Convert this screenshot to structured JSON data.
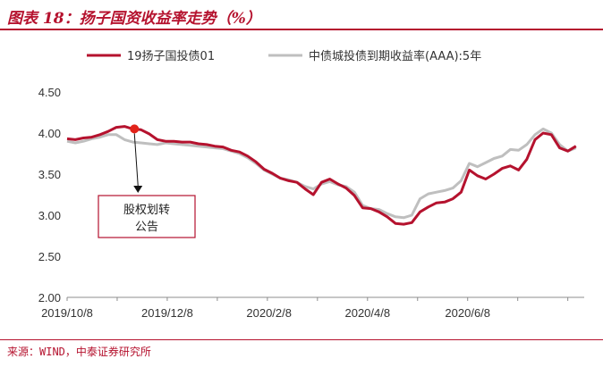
{
  "header": {
    "title": "图表 18：扬子国资收益率走势（%）"
  },
  "footer": {
    "source": "来源：WIND，中泰证券研究所"
  },
  "chart_data": {
    "type": "line",
    "title": "图表 18：扬子国资收益率走势（%）",
    "xlabel": "",
    "ylabel": "",
    "ylim": [
      2.0,
      4.5
    ],
    "yticks": [
      "2.00",
      "2.50",
      "3.00",
      "3.50",
      "4.00",
      "4.50"
    ],
    "xtick_labels": [
      "2019/10/8",
      "2019/12/8",
      "2020/2/8",
      "2020/4/8",
      "2020/6/8"
    ],
    "xtick_positions": [
      0,
      61,
      123,
      183,
      244
    ],
    "x_range": [
      0,
      315
    ],
    "legend": {
      "position": "top"
    },
    "series": [
      {
        "name": "19扬子国投债01",
        "color": "#B5122E",
        "x": [
          0,
          5,
          10,
          15,
          20,
          25,
          30,
          35,
          40,
          45,
          50,
          55,
          60,
          65,
          70,
          75,
          80,
          85,
          90,
          95,
          100,
          105,
          110,
          115,
          120,
          125,
          130,
          135,
          140,
          145,
          150,
          155,
          160,
          165,
          170,
          175,
          180,
          185,
          190,
          195,
          200,
          205,
          210,
          215,
          220,
          225,
          230,
          235,
          240,
          245,
          250,
          255,
          260,
          265,
          270,
          275,
          280,
          285,
          290,
          295,
          300,
          305,
          310
        ],
        "values": [
          3.93,
          3.92,
          3.94,
          3.95,
          3.98,
          4.02,
          4.07,
          4.08,
          4.05,
          4.04,
          3.99,
          3.92,
          3.9,
          3.9,
          3.89,
          3.89,
          3.87,
          3.86,
          3.84,
          3.83,
          3.79,
          3.77,
          3.72,
          3.65,
          3.56,
          3.51,
          3.45,
          3.42,
          3.4,
          3.32,
          3.25,
          3.4,
          3.44,
          3.38,
          3.33,
          3.24,
          3.09,
          3.08,
          3.04,
          2.98,
          2.9,
          2.89,
          2.91,
          3.04,
          3.1,
          3.15,
          3.16,
          3.2,
          3.28,
          3.55,
          3.48,
          3.44,
          3.5,
          3.57,
          3.6,
          3.55,
          3.68,
          3.92,
          4.0,
          3.98,
          3.82,
          3.78,
          3.84
        ]
      },
      {
        "name": "中债城投债到期收益率(AAA):5年",
        "color": "#BFBFBF",
        "x": [
          0,
          5,
          10,
          15,
          20,
          25,
          30,
          35,
          40,
          45,
          50,
          55,
          60,
          65,
          70,
          75,
          80,
          85,
          90,
          95,
          100,
          105,
          110,
          115,
          120,
          125,
          130,
          135,
          140,
          145,
          150,
          155,
          160,
          165,
          170,
          175,
          180,
          185,
          190,
          195,
          200,
          205,
          210,
          215,
          220,
          225,
          230,
          235,
          240,
          245,
          250,
          255,
          260,
          265,
          270,
          275,
          280,
          285,
          290,
          295,
          300,
          305,
          310
        ],
        "values": [
          3.9,
          3.88,
          3.9,
          3.93,
          3.95,
          3.98,
          3.98,
          3.92,
          3.89,
          3.88,
          3.87,
          3.86,
          3.88,
          3.87,
          3.86,
          3.85,
          3.84,
          3.83,
          3.82,
          3.81,
          3.78,
          3.75,
          3.7,
          3.63,
          3.55,
          3.5,
          3.45,
          3.43,
          3.4,
          3.35,
          3.32,
          3.38,
          3.41,
          3.37,
          3.35,
          3.28,
          3.12,
          3.08,
          3.07,
          3.02,
          2.98,
          2.97,
          3.0,
          3.2,
          3.26,
          3.28,
          3.3,
          3.33,
          3.42,
          3.63,
          3.59,
          3.64,
          3.69,
          3.72,
          3.8,
          3.79,
          3.86,
          3.98,
          4.05,
          4.0,
          3.86,
          3.78,
          3.82
        ]
      }
    ],
    "annotation": {
      "text_line1": "股权划转",
      "text_line2": "公告",
      "x": 41,
      "y": 4.05
    }
  }
}
